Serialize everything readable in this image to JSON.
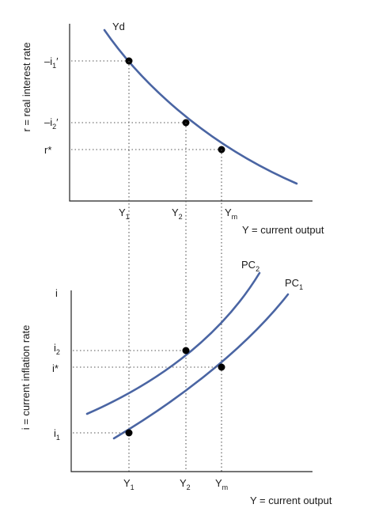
{
  "top_panel": {
    "y_axis_label": "r = real interest rate",
    "x_axis_label": "Y = current output",
    "curve_label": "Yd",
    "y_ticks": {
      "i1": {
        "base": "–i",
        "sub": "1",
        "suffix": "′"
      },
      "i2": {
        "base": "–i",
        "sub": "2",
        "suffix": "′"
      },
      "rstar": {
        "base": "r*",
        "sub": "",
        "suffix": ""
      }
    },
    "x_ticks": {
      "y1": {
        "base": "Y",
        "sub": "1"
      },
      "y2": {
        "base": "Y",
        "sub": "2"
      },
      "ym": {
        "base": "Y",
        "sub": "m"
      }
    }
  },
  "bottom_panel": {
    "y_axis_label": "i = current inflation rate",
    "y_axis_top": "i",
    "x_axis_label": "Y = current output",
    "curve_labels": {
      "pc2": {
        "base": "PC",
        "sub": "2"
      },
      "pc1": {
        "base": "PC",
        "sub": "1"
      }
    },
    "y_ticks": {
      "i2": {
        "base": "i",
        "sub": "2"
      },
      "istar": {
        "base": "i*",
        "sub": ""
      },
      "i1": {
        "base": "i",
        "sub": "1"
      }
    },
    "x_ticks": {
      "y1": {
        "base": "Y",
        "sub": "1"
      },
      "y2": {
        "base": "Y",
        "sub": "2"
      },
      "ym": {
        "base": "Y",
        "sub": "m"
      }
    }
  },
  "colors": {
    "curve": "#4a65a3",
    "axis": "#222222",
    "point": "#000000"
  }
}
